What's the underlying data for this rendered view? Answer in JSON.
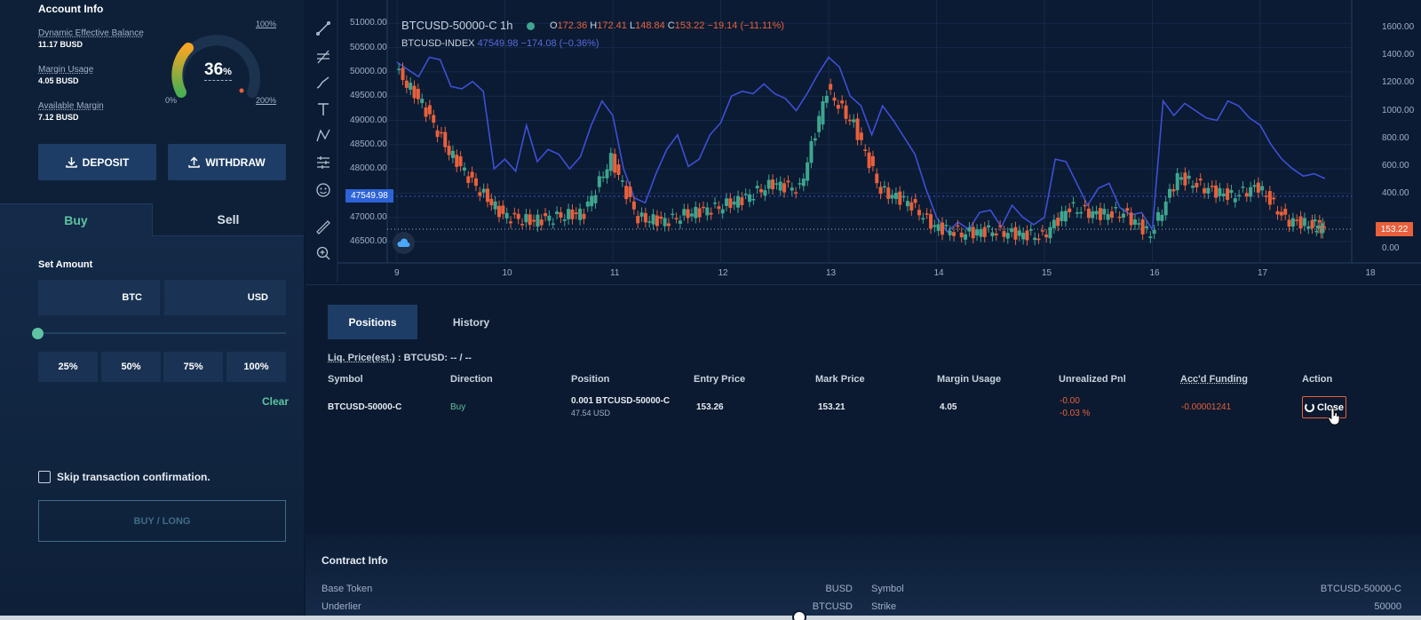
{
  "account": {
    "title": "Account Info",
    "stats": [
      {
        "label": "Dynamic Effective Balance",
        "value": "11.17 BUSD"
      },
      {
        "label": "Margin Usage",
        "value": "4.05 BUSD"
      },
      {
        "label": "Available Margin",
        "value": "7.12 BUSD"
      }
    ],
    "gauge": {
      "value": "36",
      "unit": "%",
      "fraction": 0.36,
      "min_label": "0%",
      "mid_label": "100%",
      "max_label": "200%"
    },
    "deposit_label": "DEPOSIT",
    "withdraw_label": "WITHDRAW"
  },
  "trade": {
    "tab_buy": "Buy",
    "tab_sell": "Sell",
    "set_amount_label": "Set Amount",
    "amount_btc_unit": "BTC",
    "amount_usd_unit": "USD",
    "slider_fraction": 0,
    "pct_buttons": [
      "25%",
      "50%",
      "75%",
      "100%"
    ],
    "clear_label": "Clear",
    "skip_label": "Skip transaction confirmation.",
    "submit_label": "BUY / LONG"
  },
  "chart": {
    "symbol": "BTCUSD-50000-C",
    "interval": "1h",
    "ohlc": {
      "o_label": "O",
      "o": "172.36",
      "h_label": "H",
      "h": "172.41",
      "l_label": "L",
      "l": "148.84",
      "c_label": "C",
      "c": "153.22",
      "change": "−19.14 (−11.11%)"
    },
    "index_name": "BTCUSD-INDEX",
    "index_vals": "47549.98  −174.08 (−0.36%)",
    "left_price_tag": "47549.98",
    "right_price_tag": "153.22",
    "colors": {
      "up": "#3fa58f",
      "down": "#e8603c",
      "index": "#3f4fd6"
    }
  },
  "chart_data": {
    "type": "line",
    "x_ticks": [
      "9",
      "10",
      "11",
      "12",
      "13",
      "14",
      "15",
      "16",
      "17",
      "18"
    ],
    "y_left_ticks": [
      "51000.00",
      "50500.00",
      "50000.00",
      "49500.00",
      "49000.00",
      "48500.00",
      "48000.00",
      "47000.00",
      "46500.00"
    ],
    "y_right_ticks": [
      "1600.00",
      "1400.00",
      "1200.00",
      "1000.00",
      "800.00",
      "600.00",
      "400.00",
      "0.00"
    ],
    "series": [
      {
        "name": "BTCUSD-INDEX",
        "axis": "left",
        "x": [
          9,
          9.1,
          9.2,
          9.3,
          9.4,
          9.5,
          9.6,
          9.7,
          9.8,
          9.9,
          10,
          10.1,
          10.2,
          10.3,
          10.4,
          10.5,
          10.6,
          10.7,
          10.8,
          10.9,
          11,
          11.1,
          11.2,
          11.3,
          11.4,
          11.5,
          11.6,
          11.7,
          11.8,
          11.9,
          12,
          12.1,
          12.2,
          12.3,
          12.4,
          12.5,
          12.6,
          12.7,
          12.8,
          12.9,
          13,
          13.1,
          13.2,
          13.3,
          13.4,
          13.5,
          13.6,
          13.7,
          13.8,
          13.9,
          14,
          14.1,
          14.2,
          14.3,
          14.4,
          14.5,
          14.6,
          14.7,
          14.8,
          14.9,
          15,
          15.1,
          15.2,
          15.3,
          15.4,
          15.5,
          15.6,
          15.7,
          15.8,
          15.9,
          16,
          16.1,
          16.2,
          16.3,
          16.4,
          16.5,
          16.6,
          16.7,
          16.8,
          16.9,
          17,
          17.1,
          17.2,
          17.3,
          17.4,
          17.5,
          17.6
        ],
        "values": [
          50200,
          50050,
          49900,
          50300,
          50250,
          49700,
          49650,
          49800,
          49600,
          48000,
          48200,
          47950,
          48900,
          48150,
          48400,
          48300,
          48000,
          48250,
          48900,
          49400,
          49100,
          48000,
          47400,
          47300,
          47900,
          48400,
          48700,
          48050,
          48200,
          48700,
          48950,
          49500,
          49600,
          49550,
          49750,
          49550,
          49450,
          49200,
          49550,
          49950,
          50300,
          50100,
          49500,
          49300,
          48700,
          49300,
          49000,
          48650,
          48300,
          47600,
          47000,
          46700,
          46900,
          46750,
          47100,
          47150,
          46800,
          47250,
          47000,
          46850,
          47000,
          48200,
          48150,
          47700,
          47250,
          47600,
          47700,
          47200,
          47050,
          47100,
          46750,
          49400,
          49100,
          49350,
          49200,
          49050,
          49000,
          49400,
          49300,
          49050,
          48900,
          48500,
          48200,
          48000,
          47850,
          47900,
          47800
        ]
      },
      {
        "name": "BTCUSD-50000-C",
        "axis": "right",
        "x": [
          9,
          9.25,
          9.5,
          9.75,
          10,
          10.25,
          10.5,
          10.75,
          11,
          11.25,
          11.5,
          11.75,
          12,
          12.25,
          12.5,
          12.75,
          13,
          13.25,
          13.5,
          13.75,
          14,
          14.25,
          14.5,
          14.75,
          15,
          15.25,
          15.5,
          15.75,
          16,
          16.25,
          16.5,
          16.75,
          17,
          17.25,
          17.5,
          17.6
        ],
        "values": [
          1300,
          1050,
          700,
          450,
          240,
          200,
          230,
          260,
          650,
          220,
          200,
          260,
          300,
          370,
          470,
          430,
          1150,
          900,
          420,
          340,
          160,
          110,
          130,
          110,
          90,
          300,
          250,
          260,
          100,
          520,
          440,
          380,
          450,
          210,
          170,
          153
        ]
      }
    ]
  },
  "positions": {
    "tab_positions": "Positions",
    "tab_history": "History",
    "liq_label": "Liq. Price(est.)",
    "liq_value": ": BTCUSD: -- / --",
    "headers": [
      "Symbol",
      "Direction",
      "Position",
      "Entry Price",
      "Mark Price",
      "Margin Usage",
      "Unrealized Pnl",
      "Acc'd Funding",
      "Action"
    ],
    "row": {
      "symbol": "BTCUSD-50000-C",
      "direction": "Buy",
      "position": "0.001 BTCUSD-50000-C",
      "position_usd": "47.54 USD",
      "entry_price": "153.26",
      "mark_price": "153.21",
      "margin_usage": "4.05",
      "pnl": "-0.00",
      "pnl_pct": "-0.03 %",
      "funding": "-0.00001241",
      "action": "Close"
    }
  },
  "contract": {
    "title": "Contract Info",
    "rows": [
      {
        "k1": "Base Token",
        "v1": "BUSD",
        "k2": "Symbol",
        "v2": "BTCUSD-50000-C"
      },
      {
        "k1": "Underlier",
        "v1": "BTCUSD",
        "k2": "Strike",
        "v2": "50000"
      }
    ]
  }
}
